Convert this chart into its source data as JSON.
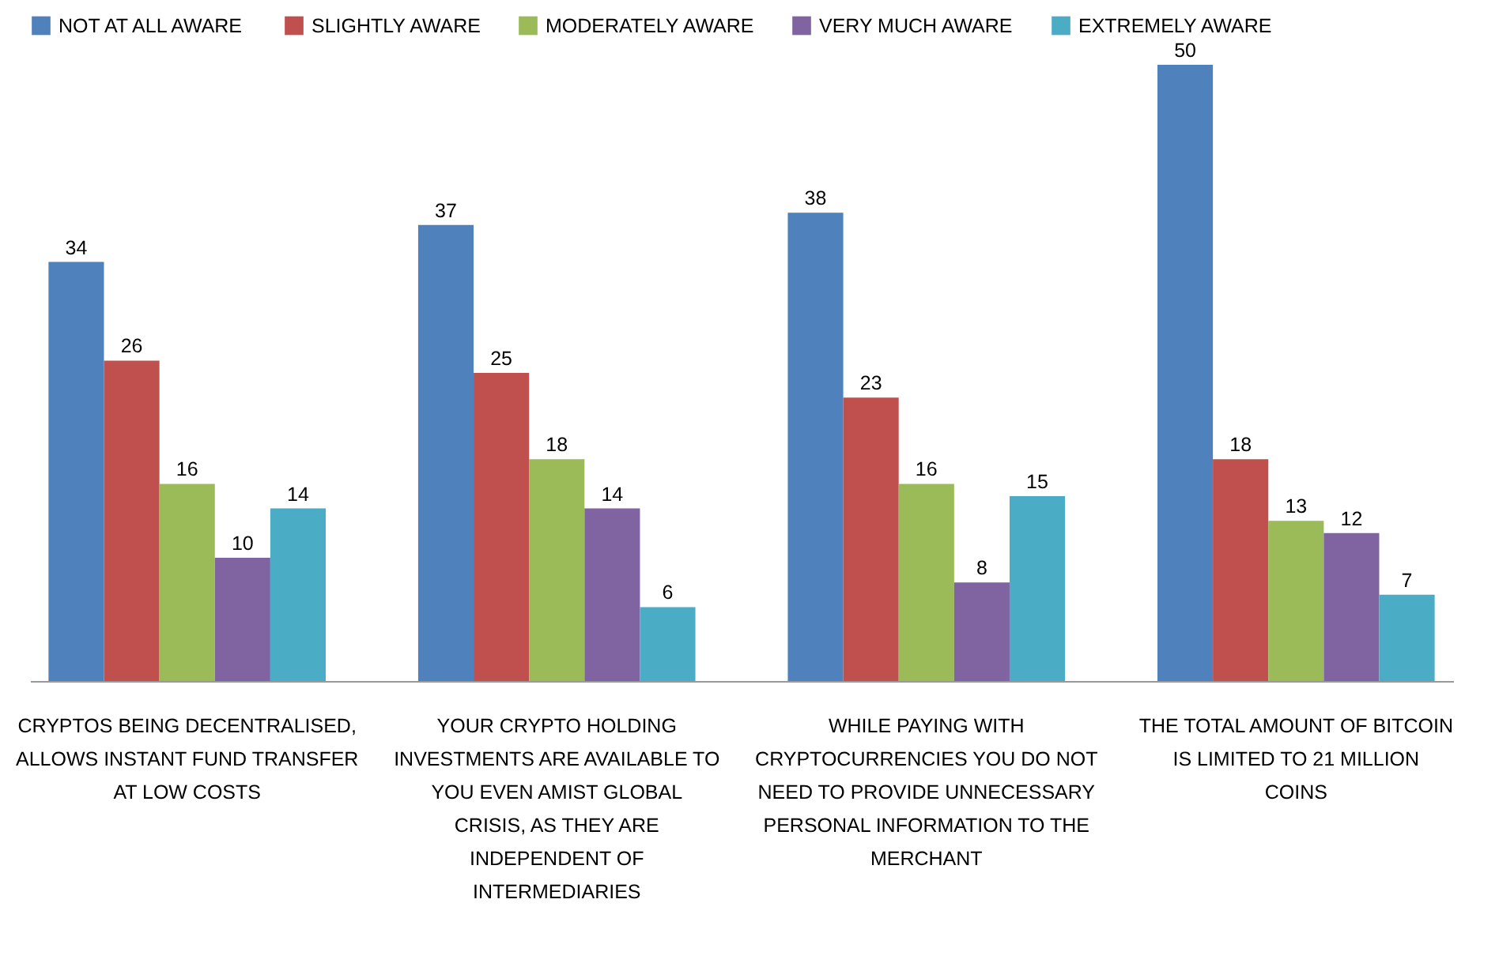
{
  "chart_data": {
    "type": "bar",
    "categories": [
      "CRYPTOS BEING DECENTRALISED, ALLOWS INSTANT FUND TRANSFER AT LOW COSTS",
      "YOUR CRYPTO HOLDING INVESTMENTS ARE AVAILABLE TO YOU EVEN AMIST GLOBAL CRISIS, AS THEY ARE INDEPENDENT OF INTERMEDIARIES",
      "WHILE PAYING WITH CRYPTOCURRENCIES YOU DO NOT NEED TO PROVIDE UNNECESSARY PERSONAL INFORMATION TO THE MERCHANT",
      "THE TOTAL AMOUNT OF BITCOIN IS LIMITED TO 21 MILLION COINS"
    ],
    "series": [
      {
        "name": "NOT AT ALL AWARE",
        "color": "#4f81bd",
        "values": [
          34,
          37,
          38,
          50
        ]
      },
      {
        "name": "SLIGHTLY AWARE",
        "color": "#c0504d",
        "values": [
          26,
          25,
          23,
          18
        ]
      },
      {
        "name": "MODERATELY AWARE",
        "color": "#9bbb59",
        "values": [
          16,
          18,
          16,
          13
        ]
      },
      {
        "name": "VERY MUCH AWARE",
        "color": "#8064a2",
        "values": [
          10,
          14,
          8,
          12
        ]
      },
      {
        "name": "EXTREMELY AWARE",
        "color": "#4bacc6",
        "values": [
          14,
          6,
          15,
          7
        ]
      }
    ],
    "data_labels": true,
    "legend": "top"
  }
}
